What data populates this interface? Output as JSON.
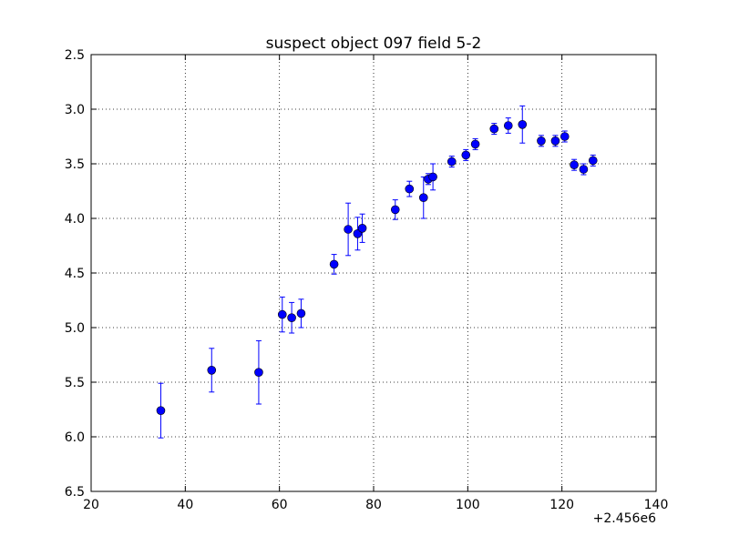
{
  "chart_data": {
    "type": "scatter",
    "title": "suspect object 097 field 5-2",
    "xlabel": "",
    "ylabel": "",
    "x_offset_label": "+2.456e6",
    "xlim": [
      20,
      140
    ],
    "ylim": [
      6.5,
      2.5
    ],
    "y_inverted": true,
    "grid": true,
    "marker_color": "#0000ff",
    "errorbar_color": "#0000ff",
    "x_ticks": [
      "20",
      "40",
      "60",
      "80",
      "100",
      "120",
      "140"
    ],
    "y_ticks": [
      "2.5",
      "3.0",
      "3.5",
      "4.0",
      "4.5",
      "5.0",
      "5.5",
      "6.0",
      "6.5"
    ],
    "series": [
      {
        "x": [
          34.8,
          45.6,
          55.6,
          60.6,
          62.6,
          64.6,
          71.6,
          74.6,
          76.6,
          77.6,
          84.6,
          87.6,
          90.6,
          91.6,
          92.6,
          96.6,
          99.6,
          101.6,
          105.6,
          108.6,
          111.6,
          115.6,
          118.6,
          120.6,
          122.6,
          124.6,
          126.6
        ],
        "y": [
          5.76,
          5.39,
          5.41,
          4.88,
          4.91,
          4.87,
          4.42,
          4.1,
          4.14,
          4.09,
          3.92,
          3.73,
          3.81,
          3.64,
          3.62,
          3.48,
          3.42,
          3.32,
          3.18,
          3.15,
          3.14,
          3.29,
          3.29,
          3.25,
          3.51,
          3.55,
          3.47
        ],
        "yerr": [
          0.25,
          0.2,
          0.29,
          0.16,
          0.14,
          0.13,
          0.09,
          0.24,
          0.15,
          0.13,
          0.09,
          0.07,
          0.19,
          0.05,
          0.12,
          0.05,
          0.05,
          0.05,
          0.05,
          0.07,
          0.17,
          0.05,
          0.05,
          0.05,
          0.05,
          0.05,
          0.05
        ]
      }
    ]
  }
}
